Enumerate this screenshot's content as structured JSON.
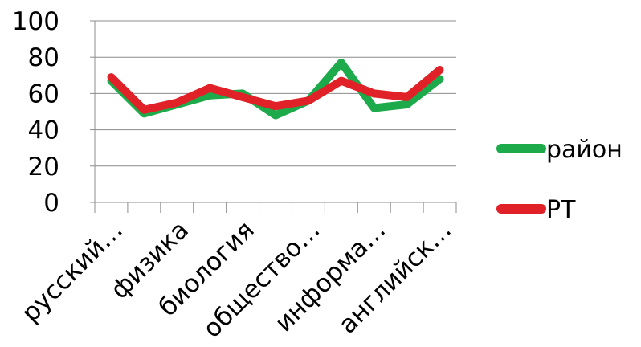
{
  "chart_data": {
    "type": "line",
    "categories": [
      "русский...",
      "",
      "физика",
      "",
      "биология",
      "",
      "обществ...",
      "",
      "информа...",
      "",
      "английск..."
    ],
    "category_labels_shown": [
      "русский…",
      "физика",
      "биология",
      "общество…",
      "информа…",
      "английск…"
    ],
    "series": [
      {
        "name": "район",
        "color": "#1daa4b",
        "values": [
          67,
          49,
          54,
          59,
          60,
          48,
          56,
          77,
          52,
          54,
          68
        ]
      },
      {
        "name": "РТ",
        "color": "#e02128",
        "values": [
          69,
          51,
          55,
          63,
          58,
          53,
          56,
          67,
          60,
          58,
          73
        ]
      }
    ],
    "ylim": [
      0,
      100
    ],
    "yticks": [
      0,
      20,
      40,
      60,
      80,
      100
    ],
    "grid": true,
    "legend": "right",
    "title": "",
    "xlabel": "",
    "ylabel": ""
  }
}
